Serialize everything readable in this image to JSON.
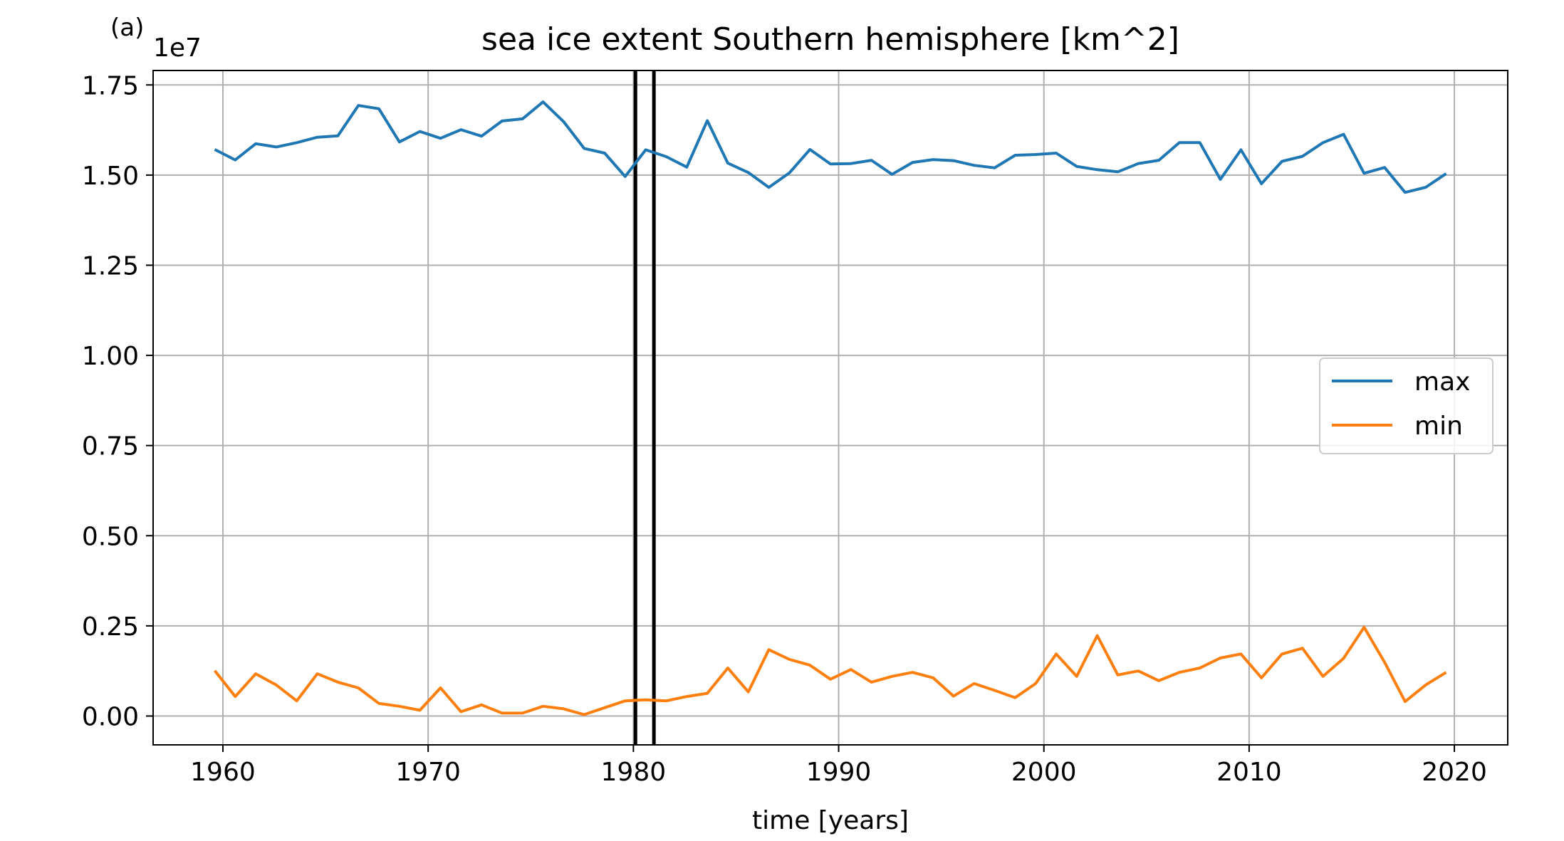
{
  "chart_data": {
    "type": "line",
    "panel_label": "(a)",
    "title": "sea ice extent Southern hemisphere [km^2]",
    "xlabel": "time [years]",
    "ylabel": "",
    "y_offset_label": "1e7",
    "xlim": [
      1956.6,
      2022.6
    ],
    "ylim": [
      -0.08,
      1.79
    ],
    "y_scale_factor": 10000000,
    "xticks": [
      1960,
      1970,
      1980,
      1990,
      2000,
      2010,
      2020
    ],
    "yticks": [
      "0.00",
      "0.25",
      "0.50",
      "0.75",
      "1.00",
      "1.25",
      "1.50",
      "1.75"
    ],
    "grid": true,
    "legend_position": "center-right",
    "vertical_lines": [
      1980.1,
      1981.0
    ],
    "x": [
      1959.6,
      1960.6,
      1961.6,
      1962.6,
      1963.6,
      1964.6,
      1965.6,
      1966.6,
      1967.6,
      1968.6,
      1969.6,
      1970.6,
      1971.6,
      1972.6,
      1973.6,
      1974.6,
      1975.6,
      1976.6,
      1977.6,
      1978.6,
      1979.6,
      1980.6,
      1981.6,
      1982.6,
      1983.6,
      1984.6,
      1985.6,
      1986.6,
      1987.6,
      1988.6,
      1989.6,
      1990.6,
      1991.6,
      1992.6,
      1993.6,
      1994.6,
      1995.6,
      1996.6,
      1997.6,
      1998.6,
      1999.6,
      2000.6,
      2001.6,
      2002.6,
      2003.6,
      2004.6,
      2005.6,
      2006.6,
      2007.6,
      2008.6,
      2009.6,
      2010.6,
      2011.6,
      2012.6,
      2013.6,
      2014.6,
      2015.6,
      2016.6,
      2017.6,
      2018.6,
      2019.6
    ],
    "series": [
      {
        "name": "max",
        "color": "#1f77b4",
        "values": [
          1.571,
          1.542,
          1.587,
          1.578,
          1.59,
          1.605,
          1.609,
          1.693,
          1.684,
          1.592,
          1.621,
          1.602,
          1.626,
          1.608,
          1.65,
          1.656,
          1.703,
          1.648,
          1.574,
          1.561,
          1.496,
          1.57,
          1.551,
          1.522,
          1.651,
          1.533,
          1.507,
          1.466,
          1.506,
          1.571,
          1.531,
          1.532,
          1.541,
          1.502,
          1.535,
          1.543,
          1.54,
          1.527,
          1.52,
          1.555,
          1.557,
          1.561,
          1.524,
          1.515,
          1.509,
          1.532,
          1.541,
          1.59,
          1.59,
          1.488,
          1.57,
          1.476,
          1.538,
          1.552,
          1.59,
          1.613,
          1.505,
          1.521,
          1.452,
          1.466,
          1.504
        ]
      },
      {
        "name": "min",
        "color": "#ff7f0e",
        "values": [
          0.126,
          0.054,
          0.117,
          0.086,
          0.042,
          0.117,
          0.094,
          0.078,
          0.035,
          0.027,
          0.016,
          0.078,
          0.012,
          0.031,
          0.008,
          0.008,
          0.027,
          0.02,
          0.004,
          0.023,
          0.042,
          0.045,
          0.042,
          0.054,
          0.063,
          0.133,
          0.067,
          0.184,
          0.157,
          0.141,
          0.102,
          0.129,
          0.094,
          0.11,
          0.121,
          0.106,
          0.055,
          0.09,
          0.071,
          0.051,
          0.09,
          0.172,
          0.11,
          0.223,
          0.114,
          0.125,
          0.098,
          0.121,
          0.133,
          0.161,
          0.172,
          0.106,
          0.172,
          0.188,
          0.11,
          0.16,
          0.246,
          0.149,
          0.04,
          0.086,
          0.121
        ]
      }
    ]
  }
}
